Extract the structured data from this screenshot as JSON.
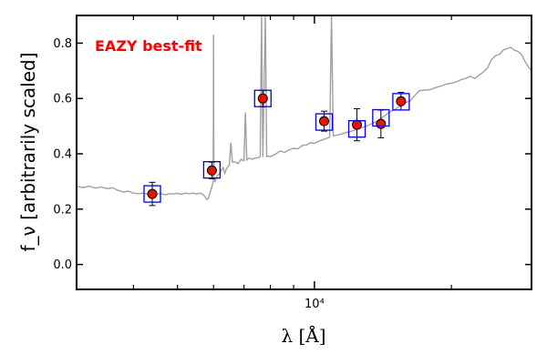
{
  "chart_data": {
    "type": "scatter",
    "xscale": "log",
    "xlim": [
      3000,
      30000
    ],
    "ylim": [
      -0.09,
      0.9
    ],
    "xlabel": "λ [Å]",
    "ylabel": "f_ν [arbitrarily scaled]",
    "yticks": [
      "0.0",
      "0.2",
      "0.4",
      "0.6",
      "0.8"
    ],
    "ytick_values": [
      0.0,
      0.2,
      0.4,
      0.6,
      0.8
    ],
    "xtick_major": {
      "value": 10000,
      "label": "10⁴"
    },
    "xtick_minor": [
      4000,
      5000,
      6000,
      7000,
      8000,
      9000,
      20000
    ],
    "annotation": {
      "text": "EAZY best-fit",
      "color": "#ff0000"
    },
    "colors": {
      "spectrum": "#a0a0a0",
      "observed_fill": "#ee1100",
      "model_box": "#0000ee",
      "error_bar": "#000000"
    },
    "observed": [
      {
        "x": 4400,
        "y": 0.255,
        "err": 0.042
      },
      {
        "x": 5950,
        "y": 0.34,
        "err": 0.03
      },
      {
        "x": 7700,
        "y": 0.6,
        "err": 0.03
      },
      {
        "x": 10500,
        "y": 0.518,
        "err": 0.036
      },
      {
        "x": 12400,
        "y": 0.505,
        "err": 0.058
      },
      {
        "x": 14000,
        "y": 0.508,
        "err": 0.05
      },
      {
        "x": 15500,
        "y": 0.59,
        "err": 0.032
      }
    ],
    "model_photometry": [
      {
        "x": 4400,
        "y": 0.255
      },
      {
        "x": 5950,
        "y": 0.342
      },
      {
        "x": 7700,
        "y": 0.6
      },
      {
        "x": 10500,
        "y": 0.515
      },
      {
        "x": 12400,
        "y": 0.49
      },
      {
        "x": 14000,
        "y": 0.53
      },
      {
        "x": 15500,
        "y": 0.588
      }
    ],
    "model_spectrum": [
      [
        3000,
        0.282
      ],
      [
        3100,
        0.278
      ],
      [
        3200,
        0.283
      ],
      [
        3300,
        0.276
      ],
      [
        3400,
        0.28
      ],
      [
        3500,
        0.274
      ],
      [
        3600,
        0.277
      ],
      [
        3700,
        0.268
      ],
      [
        3800,
        0.262
      ],
      [
        3900,
        0.265
      ],
      [
        4000,
        0.258
      ],
      [
        4100,
        0.256
      ],
      [
        4200,
        0.258
      ],
      [
        4300,
        0.254
      ],
      [
        4400,
        0.256
      ],
      [
        4500,
        0.254
      ],
      [
        4600,
        0.256
      ],
      [
        4700,
        0.252
      ],
      [
        4800,
        0.256
      ],
      [
        4900,
        0.255
      ],
      [
        5000,
        0.257
      ],
      [
        5100,
        0.254
      ],
      [
        5200,
        0.258
      ],
      [
        5300,
        0.256
      ],
      [
        5400,
        0.258
      ],
      [
        5500,
        0.255
      ],
      [
        5600,
        0.258
      ],
      [
        5700,
        0.252
      ],
      [
        5800,
        0.235
      ],
      [
        5850,
        0.24
      ],
      [
        5900,
        0.262
      ],
      [
        5950,
        0.28
      ],
      [
        5990,
        0.3
      ],
      [
        6000,
        0.83
      ],
      [
        6010,
        0.31
      ],
      [
        6050,
        0.3
      ],
      [
        6100,
        0.318
      ],
      [
        6200,
        0.332
      ],
      [
        6300,
        0.35
      ],
      [
        6350,
        0.33
      ],
      [
        6400,
        0.345
      ],
      [
        6500,
        0.36
      ],
      [
        6550,
        0.44
      ],
      [
        6600,
        0.37
      ],
      [
        6700,
        0.37
      ],
      [
        6800,
        0.365
      ],
      [
        6900,
        0.38
      ],
      [
        7000,
        0.375
      ],
      [
        7050,
        0.55
      ],
      [
        7100,
        0.378
      ],
      [
        7200,
        0.385
      ],
      [
        7300,
        0.38
      ],
      [
        7400,
        0.385
      ],
      [
        7500,
        0.385
      ],
      [
        7600,
        0.39
      ],
      [
        7650,
        0.9
      ],
      [
        7700,
        0.388
      ],
      [
        7800,
        0.9
      ],
      [
        7850,
        0.39
      ],
      [
        7900,
        0.392
      ],
      [
        8000,
        0.39
      ],
      [
        8200,
        0.398
      ],
      [
        8400,
        0.41
      ],
      [
        8600,
        0.405
      ],
      [
        8800,
        0.415
      ],
      [
        9000,
        0.42
      ],
      [
        9200,
        0.418
      ],
      [
        9400,
        0.43
      ],
      [
        9600,
        0.432
      ],
      [
        9800,
        0.44
      ],
      [
        10000,
        0.438
      ],
      [
        10200,
        0.445
      ],
      [
        10400,
        0.45
      ],
      [
        10600,
        0.455
      ],
      [
        10800,
        0.46
      ],
      [
        10900,
        0.9
      ],
      [
        11000,
        0.465
      ],
      [
        11400,
        0.47
      ],
      [
        11800,
        0.478
      ],
      [
        12200,
        0.484
      ],
      [
        12600,
        0.492
      ],
      [
        13000,
        0.5
      ],
      [
        13400,
        0.51
      ],
      [
        13800,
        0.52
      ],
      [
        14200,
        0.535
      ],
      [
        14600,
        0.55
      ],
      [
        15000,
        0.56
      ],
      [
        15400,
        0.572
      ],
      [
        15800,
        0.585
      ],
      [
        16200,
        0.59
      ],
      [
        16600,
        0.61
      ],
      [
        17000,
        0.628
      ],
      [
        17500,
        0.63
      ],
      [
        18000,
        0.632
      ],
      [
        18500,
        0.64
      ],
      [
        19000,
        0.645
      ],
      [
        19500,
        0.652
      ],
      [
        20000,
        0.655
      ],
      [
        20500,
        0.66
      ],
      [
        21000,
        0.668
      ],
      [
        21500,
        0.672
      ],
      [
        22000,
        0.68
      ],
      [
        22500,
        0.672
      ],
      [
        23000,
        0.685
      ],
      [
        23500,
        0.695
      ],
      [
        24000,
        0.71
      ],
      [
        24500,
        0.74
      ],
      [
        25000,
        0.755
      ],
      [
        25500,
        0.76
      ],
      [
        26000,
        0.775
      ],
      [
        26500,
        0.78
      ],
      [
        27000,
        0.785
      ],
      [
        27500,
        0.775
      ],
      [
        28000,
        0.77
      ],
      [
        28500,
        0.76
      ],
      [
        29000,
        0.735
      ],
      [
        29500,
        0.715
      ],
      [
        30000,
        0.7
      ]
    ]
  }
}
